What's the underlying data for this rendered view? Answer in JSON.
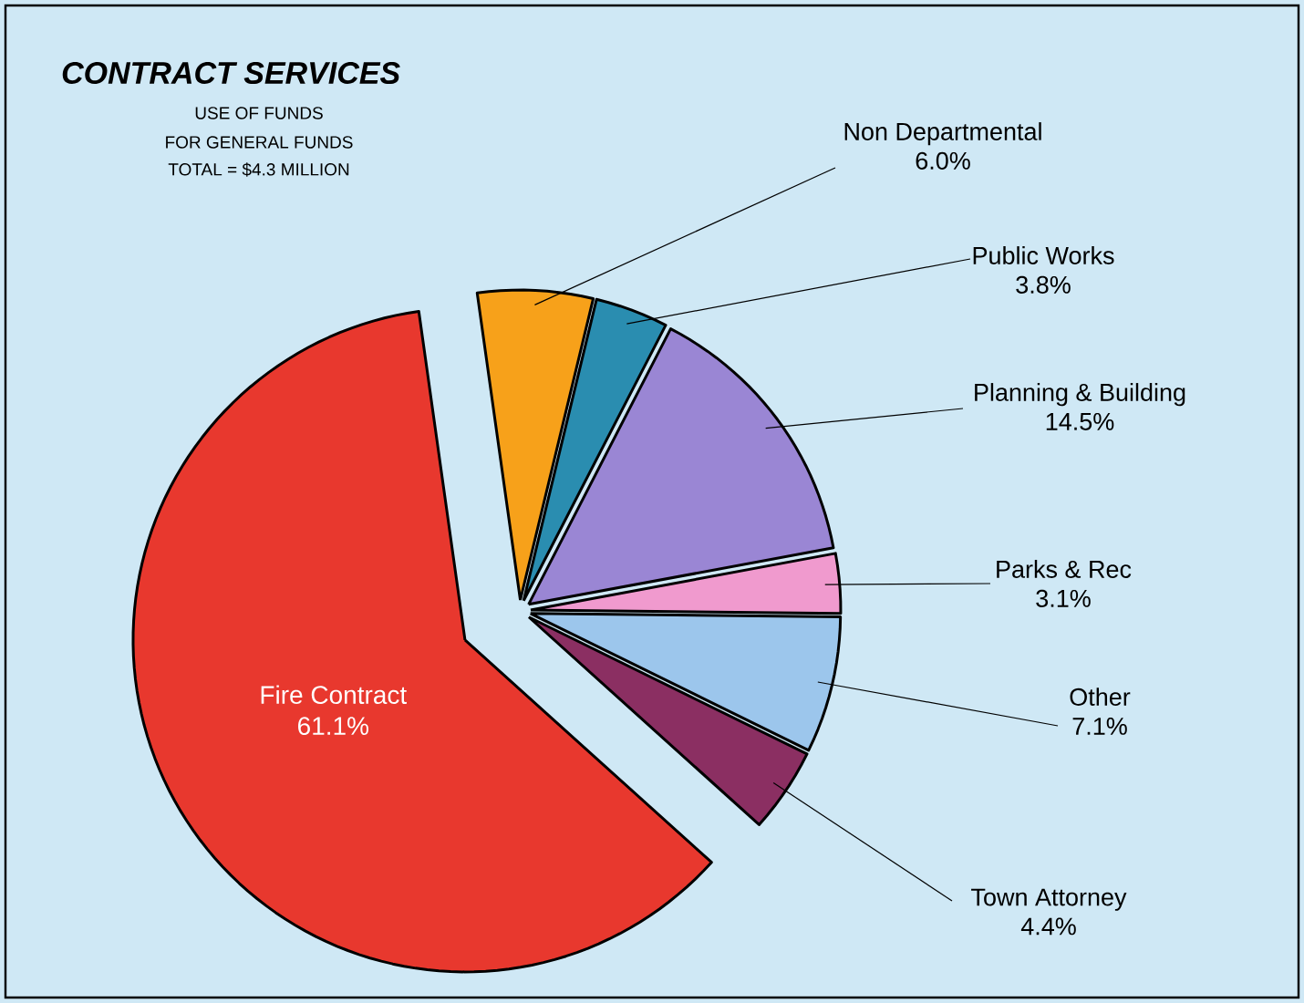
{
  "chart_data": {
    "type": "pie",
    "title": "CONTRACT SERVICES",
    "subtitle": "USE OF FUNDS",
    "annotations": [
      "FOR GENERAL FUNDS",
      "TOTAL = $4.3 MILLION"
    ],
    "categories": [
      "Non Departmental",
      "Public Works",
      "Planning & Building",
      "Parks & Rec",
      "Other",
      "Town Attorney",
      "Fire Contract"
    ],
    "values": [
      6.0,
      3.8,
      14.5,
      3.1,
      7.1,
      4.4,
      61.1
    ],
    "colors": [
      "#f7a11a",
      "#2a8db0",
      "#9a86d4",
      "#f09ace",
      "#9cc6ec",
      "#8b2f62",
      "#e8382e"
    ],
    "value_labels": [
      "6.0%",
      "3.8%",
      "14.5%",
      "3.1%",
      "7.1%",
      "4.4%",
      "61.1%"
    ]
  }
}
